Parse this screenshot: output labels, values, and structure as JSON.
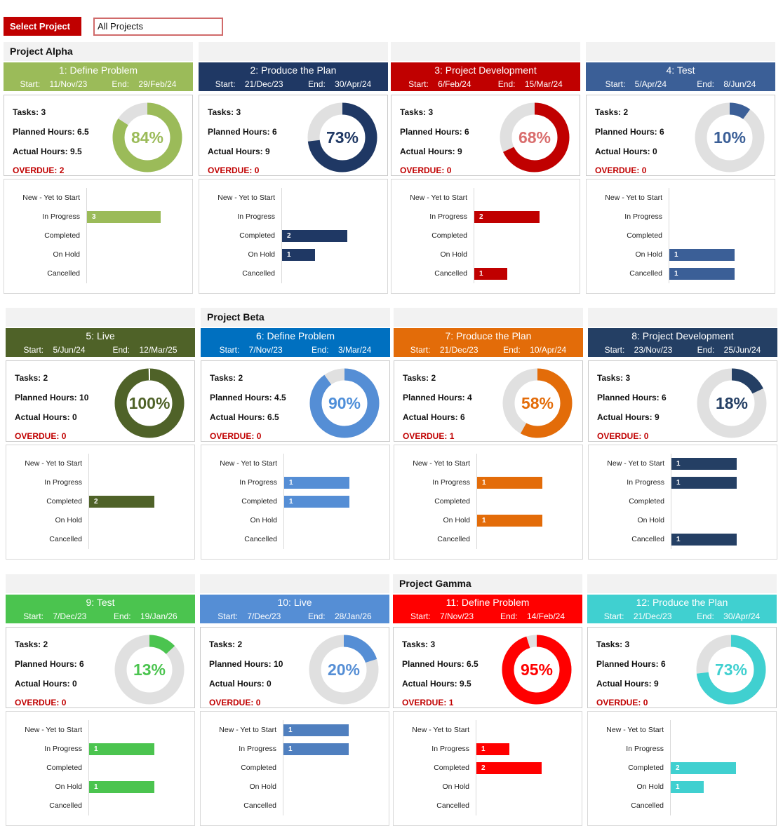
{
  "select": {
    "label": "Select Project",
    "value": "All Projects"
  },
  "groups": [
    {
      "title": "Project Alpha"
    },
    {
      "title": "Project Beta"
    },
    {
      "title": "Project Gamma"
    }
  ],
  "labels": {
    "start": "Start:",
    "end": "End:",
    "tasks": "Tasks: ",
    "planned": "Planned Hours: ",
    "actual": "Actual Hours: ",
    "overdue": "OVERDUE: "
  },
  "categories": [
    "New - Yet to Start",
    "In Progress",
    "Completed",
    "On Hold",
    "Cancelled"
  ],
  "cards": [
    {
      "title": "1: Define Problem",
      "start": "11/Nov/23",
      "end": "29/Feb/24",
      "color": "#9bbb59",
      "pct_color": "#9bbb59",
      "tasks": 3,
      "planned": "6.5",
      "actual": "9.5",
      "overdue": 2,
      "percent": 84,
      "percent_label": "84%",
      "status_counts": [
        0,
        3,
        0,
        0,
        0
      ]
    },
    {
      "title": "2: Produce the Plan",
      "start": "21/Dec/23",
      "end": "30/Apr/24",
      "color": "#1f3864",
      "pct_color": "#1f3864",
      "tasks": 3,
      "planned": "6",
      "actual": "9",
      "overdue": 0,
      "percent": 73,
      "percent_label": "73%",
      "status_counts": [
        0,
        0,
        2,
        1,
        0
      ]
    },
    {
      "title": "3: Project Development",
      "start": "6/Feb/24",
      "end": "15/Mar/24",
      "color": "#c00000",
      "pct_color": "#d96d6d",
      "tasks": 3,
      "planned": "6",
      "actual": "9",
      "overdue": 0,
      "percent": 68,
      "percent_label": "68%",
      "status_counts": [
        0,
        2,
        0,
        0,
        1
      ]
    },
    {
      "title": "4: Test",
      "start": "5/Apr/24",
      "end": "8/Jun/24",
      "color": "#3b5f97",
      "pct_color": "#3b5f97",
      "tasks": 2,
      "planned": "6",
      "actual": "0",
      "overdue": 0,
      "percent": 10,
      "percent_label": "10%",
      "status_counts": [
        0,
        0,
        0,
        1,
        1
      ]
    },
    {
      "title": "5: Live",
      "start": "5/Jun/24",
      "end": "12/Mar/25",
      "color": "#4f6228",
      "pct_color": "#4f6228",
      "tasks": 2,
      "planned": "10",
      "actual": "0",
      "overdue": 0,
      "percent": 100,
      "percent_label": "100%",
      "status_counts": [
        0,
        0,
        2,
        0,
        0
      ]
    },
    {
      "title": "6: Define Problem",
      "start": "7/Nov/23",
      "end": "3/Mar/24",
      "color": "#0070c0",
      "pct_color": "#4f8fd9",
      "ring_color": "#558ed5",
      "bar_color": "#558ed5",
      "tasks": 2,
      "planned": "4.5",
      "actual": "6.5",
      "overdue": 0,
      "percent": 90,
      "percent_label": "90%",
      "status_counts": [
        0,
        1,
        1,
        0,
        0
      ]
    },
    {
      "title": "7: Produce the Plan",
      "start": "21/Dec/23",
      "end": "10/Apr/24",
      "color": "#e36c09",
      "pct_color": "#e36c09",
      "tasks": 2,
      "planned": "4",
      "actual": "6",
      "overdue": 1,
      "percent": 58,
      "percent_label": "58%",
      "status_counts": [
        0,
        1,
        0,
        1,
        0
      ]
    },
    {
      "title": "8: Project Development",
      "start": "23/Nov/23",
      "end": "25/Jun/24",
      "color": "#243f64",
      "pct_color": "#243f64",
      "tasks": 3,
      "planned": "6",
      "actual": "9",
      "overdue": 0,
      "percent": 18,
      "percent_label": "18%",
      "status_counts": [
        1,
        1,
        0,
        0,
        1
      ]
    },
    {
      "title": "9: Test",
      "start": "7/Dec/23",
      "end": "19/Jan/26",
      "color": "#4bc44f",
      "pct_color": "#4bc44f",
      "tasks": 2,
      "planned": "6",
      "actual": "0",
      "overdue": 0,
      "percent": 13,
      "percent_label": "13%",
      "status_counts": [
        0,
        1,
        0,
        1,
        0
      ]
    },
    {
      "title": "10: Live",
      "start": "7/Dec/23",
      "end": "28/Jan/26",
      "color": "#558ed5",
      "pct_color": "#558ed5",
      "bar_color": "#4f7fbf",
      "tasks": 2,
      "planned": "10",
      "actual": "0",
      "overdue": 0,
      "percent": 20,
      "percent_label": "20%",
      "status_counts": [
        1,
        1,
        0,
        0,
        0
      ]
    },
    {
      "title": "11: Define Problem",
      "start": "7/Nov/23",
      "end": "14/Feb/24",
      "color": "#ff0000",
      "pct_color": "#ff0000",
      "tasks": 3,
      "planned": "6.5",
      "actual": "9.5",
      "overdue": 1,
      "percent": 95,
      "percent_label": "95%",
      "status_counts": [
        0,
        1,
        2,
        0,
        0
      ]
    },
    {
      "title": "12: Produce the Plan",
      "start": "21/Dec/23",
      "end": "30/Apr/24",
      "color": "#40d0d0",
      "pct_color": "#40d0d0",
      "tasks": 3,
      "planned": "6",
      "actual": "9",
      "overdue": 0,
      "percent": 73,
      "percent_label": "73%",
      "status_counts": [
        0,
        0,
        2,
        1,
        0
      ]
    }
  ]
}
